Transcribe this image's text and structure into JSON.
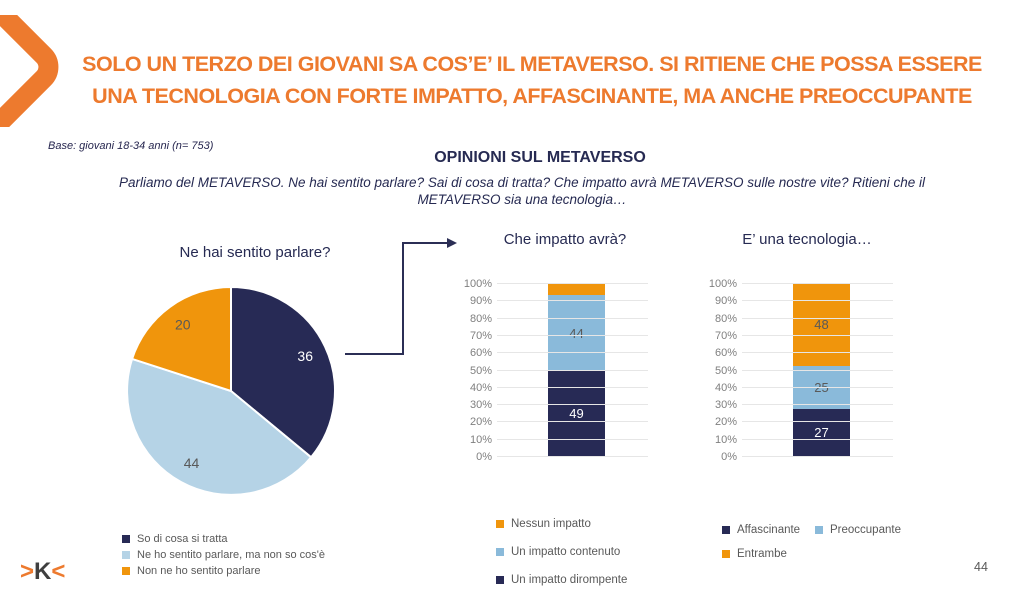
{
  "slide": {
    "title_lines": [
      "SOLO UN TERZO DEI GIOVANI SA COS’E’ IL METAVERSO. SI RITIENE CHE POSSA ESSERE",
      "UNA TECNOLOGIA CON FORTE IMPATTO, AFFASCINANTE, MA ANCHE PREOCCUPANTE"
    ],
    "base_note": "Base: giovani 18-34 anni (n= 753)",
    "section_title": "OPINIONI SUL METAVERSO",
    "question": "Parliamo del METAVERSO. Ne hai sentito parlare? Sai di cosa di tratta? Che impatto avrà METAVERSO sulle nostre vite? Ritieni che il METAVERSO sia una tecnologia…",
    "page_number": "44",
    "logo": {
      "left_chevron": ">",
      "letter": "K",
      "right_chevron": "<"
    }
  },
  "colors": {
    "accent_orange": "#ED7A2E",
    "chart_orange": "#F0950C",
    "navy": "#272A55",
    "pale_blue": "#B5D3E6",
    "mid_blue": "#8ABADA",
    "text_navy": "#262A52",
    "label_gray": "#595959",
    "tick_gray": "#7F7F7F"
  },
  "chart_data": [
    {
      "type": "pie",
      "title": "Ne hai sentito parlare?",
      "unit": "percent",
      "slices": [
        {
          "label": "So di cosa si tratta",
          "value": 36,
          "color": "#272A55",
          "value_label_color": "#FFFFFF"
        },
        {
          "label": "Ne ho sentito parlare, ma non so cos'è",
          "value": 44,
          "color": "#B5D3E6",
          "value_label_color": "#595959"
        },
        {
          "label": "Non ne ho sentito parlare",
          "value": 20,
          "color": "#F0950C",
          "value_label_color": "#595959"
        }
      ]
    },
    {
      "type": "bar",
      "stacked": true,
      "title": "Che impatto avrà?",
      "ylim": [
        0,
        100
      ],
      "yticks_top_down": [
        "100%",
        "90%",
        "80%",
        "70%",
        "60%",
        "50%",
        "40%",
        "30%",
        "20%",
        "10%",
        "0%"
      ],
      "grid": true,
      "segments_bottom_up": [
        {
          "label": "Un impatto dirompente",
          "value": 49,
          "color": "#272A55",
          "show_value": true,
          "value_color": "#FFFFFF"
        },
        {
          "label": "Un impatto contenuto",
          "value": 44,
          "color": "#8ABADA",
          "show_value": true,
          "value_color": "#595959"
        },
        {
          "label": "Nessun impatto",
          "value": 7,
          "color": "#F0950C",
          "show_value": false,
          "value_color": "#595959"
        }
      ]
    },
    {
      "type": "bar",
      "stacked": true,
      "title": "E’ una tecnologia…",
      "ylim": [
        0,
        100
      ],
      "yticks_top_down": [
        "100%",
        "90%",
        "80%",
        "70%",
        "60%",
        "50%",
        "40%",
        "30%",
        "20%",
        "10%",
        "0%"
      ],
      "grid": true,
      "segments_bottom_up": [
        {
          "label": "Affascinante",
          "value": 27,
          "color": "#272A55",
          "show_value": true,
          "value_color": "#FFFFFF"
        },
        {
          "label": "Preoccupante",
          "value": 25,
          "color": "#8ABADA",
          "show_value": true,
          "value_color": "#595959"
        },
        {
          "label": "Entrambe",
          "value": 48,
          "color": "#F0950C",
          "show_value": true,
          "value_color": "#595959"
        }
      ]
    }
  ]
}
